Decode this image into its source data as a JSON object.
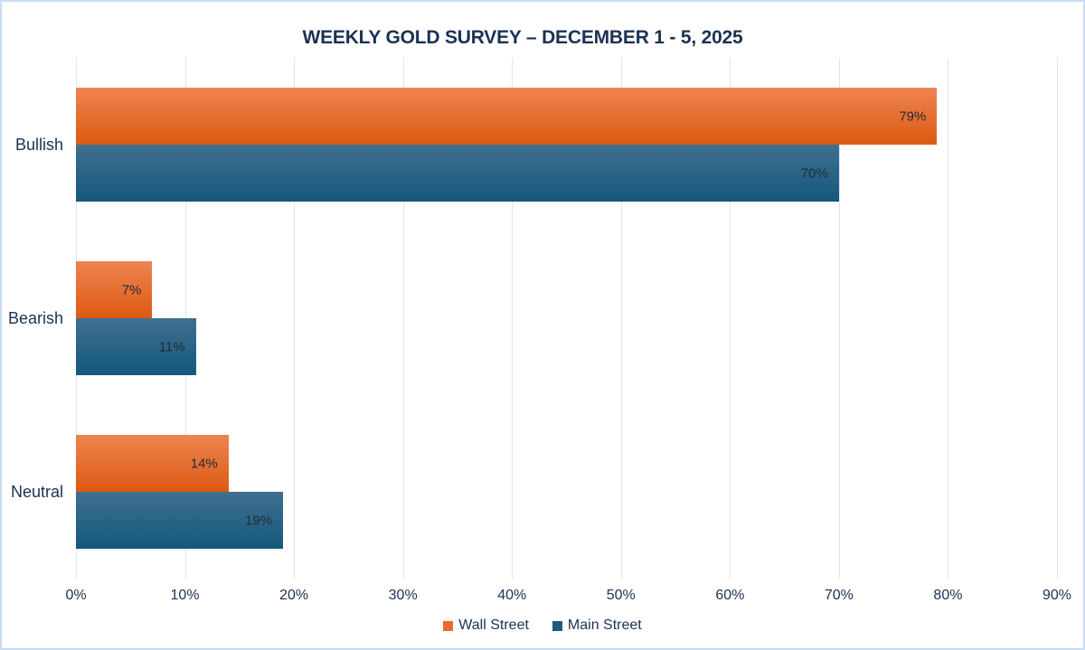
{
  "chart_data": {
    "type": "bar",
    "orientation": "horizontal",
    "title": "WEEKLY GOLD SURVEY – DECEMBER 1 - 5, 2025",
    "categories": [
      "Bullish",
      "Bearish",
      "Neutral"
    ],
    "series": [
      {
        "name": "Wall Street",
        "values": [
          79,
          7,
          14
        ]
      },
      {
        "name": "Main Street",
        "values": [
          70,
          11,
          19
        ]
      }
    ],
    "data_labels": [
      [
        "79%",
        "7%",
        "14%"
      ],
      [
        "70%",
        "11%",
        "19%"
      ]
    ],
    "value_suffix": "%",
    "xlim": [
      0,
      90
    ],
    "tick_values": [
      0,
      10,
      20,
      30,
      40,
      50,
      60,
      70,
      80,
      90
    ],
    "tick_labels": [
      "0%",
      "10%",
      "20%",
      "30%",
      "40%",
      "50%",
      "60%",
      "70%",
      "80%",
      "90%"
    ],
    "grid": true,
    "legend_position": "bottom",
    "legend_entries": [
      "Wall Street",
      "Main Street"
    ]
  },
  "colors": {
    "wall_street_top": "#ee8452",
    "wall_street_bottom": "#dc5a12",
    "wall_street_legend": "#e96b2f",
    "main_street_top": "#3f7090",
    "main_street_bottom": "#14587c",
    "main_street_legend": "#1f5c80",
    "title_text": "#1b3254",
    "value_label_text": "#222b38",
    "gridline": "#d9e7f8",
    "canvas_border": "#c9ddf4"
  }
}
